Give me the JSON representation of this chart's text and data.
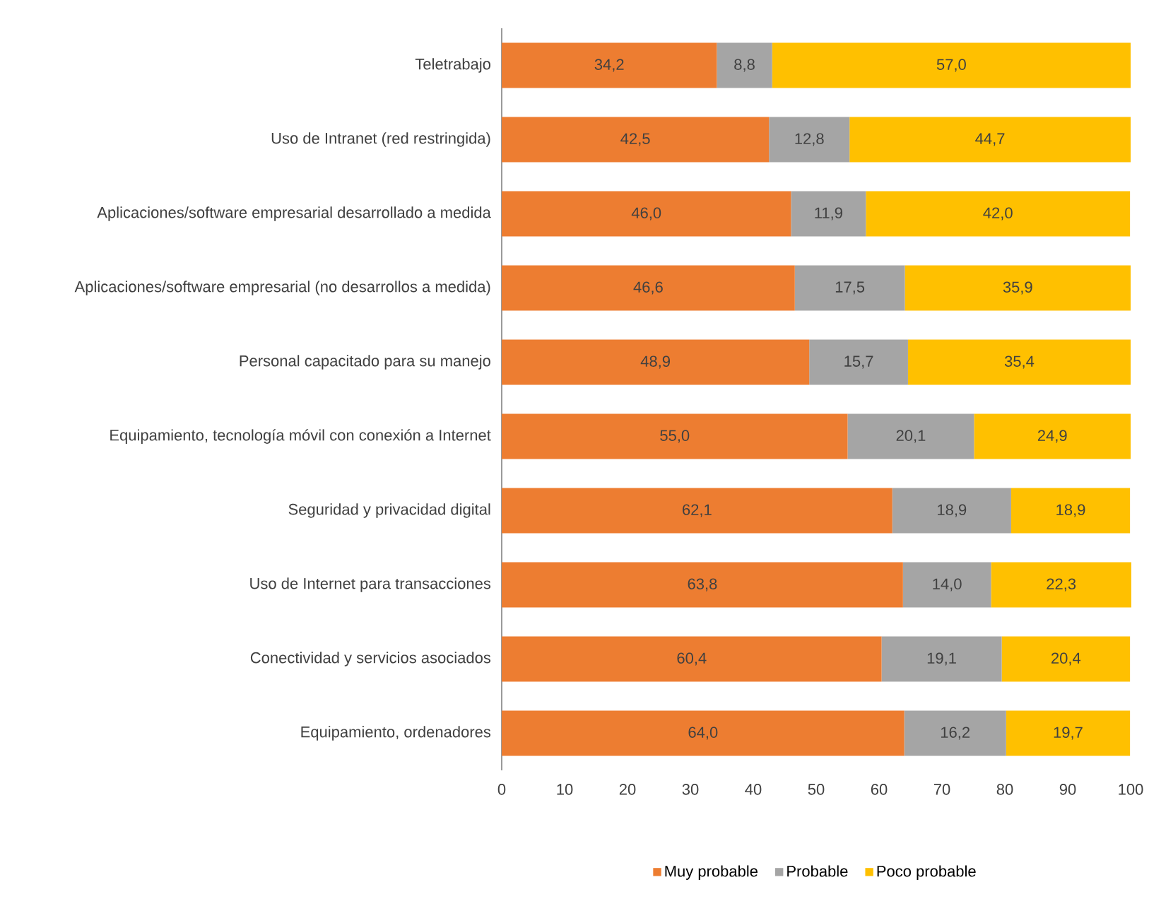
{
  "chart_data": {
    "type": "bar",
    "orientation": "horizontal",
    "stacked": true,
    "legend": "bottom",
    "categories": [
      "Teletrabajo",
      "Uso de Intranet (red restringida)",
      "Aplicaciones/software empresarial desarrollado a medida",
      "Aplicaciones/software empresarial (no desarrollos a medida)",
      "Personal capacitado para su manejo",
      "Equipamiento, tecnología móvil con conexión a Internet",
      "Seguridad y privacidad digital",
      "Uso de Internet para transacciones",
      "Conectividad y servicios asociados",
      "Equipamiento, ordenadores"
    ],
    "series": [
      {
        "name": "Muy probable",
        "color": "#ed7d31",
        "values": [
          34.2,
          42.5,
          46.0,
          46.6,
          48.9,
          55.0,
          62.1,
          63.8,
          60.4,
          64.0
        ],
        "value_labels": [
          "34,2",
          "42,5",
          "46,0",
          "46,6",
          "48,9",
          "55,0",
          "62,1",
          "63,8",
          "60,4",
          "64,0"
        ]
      },
      {
        "name": "Probable",
        "color": "#a5a5a5",
        "values": [
          8.8,
          12.8,
          11.9,
          17.5,
          15.7,
          20.1,
          18.9,
          14.0,
          19.1,
          16.2
        ],
        "value_labels": [
          "8,8",
          "12,8",
          "11,9",
          "17,5",
          "15,7",
          "20,1",
          "18,9",
          "14,0",
          "19,1",
          "16,2"
        ]
      },
      {
        "name": "Poco probable",
        "color": "#ffc000",
        "values": [
          57.0,
          44.7,
          42.0,
          35.9,
          35.4,
          24.9,
          18.9,
          22.3,
          20.4,
          19.7
        ],
        "value_labels": [
          "57,0",
          "44,7",
          "42,0",
          "35,9",
          "35,4",
          "24,9",
          "18,9",
          "22,3",
          "20,4",
          "19,7"
        ]
      }
    ],
    "xlim": [
      0,
      100
    ],
    "xticks": [
      0,
      10,
      20,
      30,
      40,
      50,
      60,
      70,
      80,
      90,
      100
    ]
  }
}
